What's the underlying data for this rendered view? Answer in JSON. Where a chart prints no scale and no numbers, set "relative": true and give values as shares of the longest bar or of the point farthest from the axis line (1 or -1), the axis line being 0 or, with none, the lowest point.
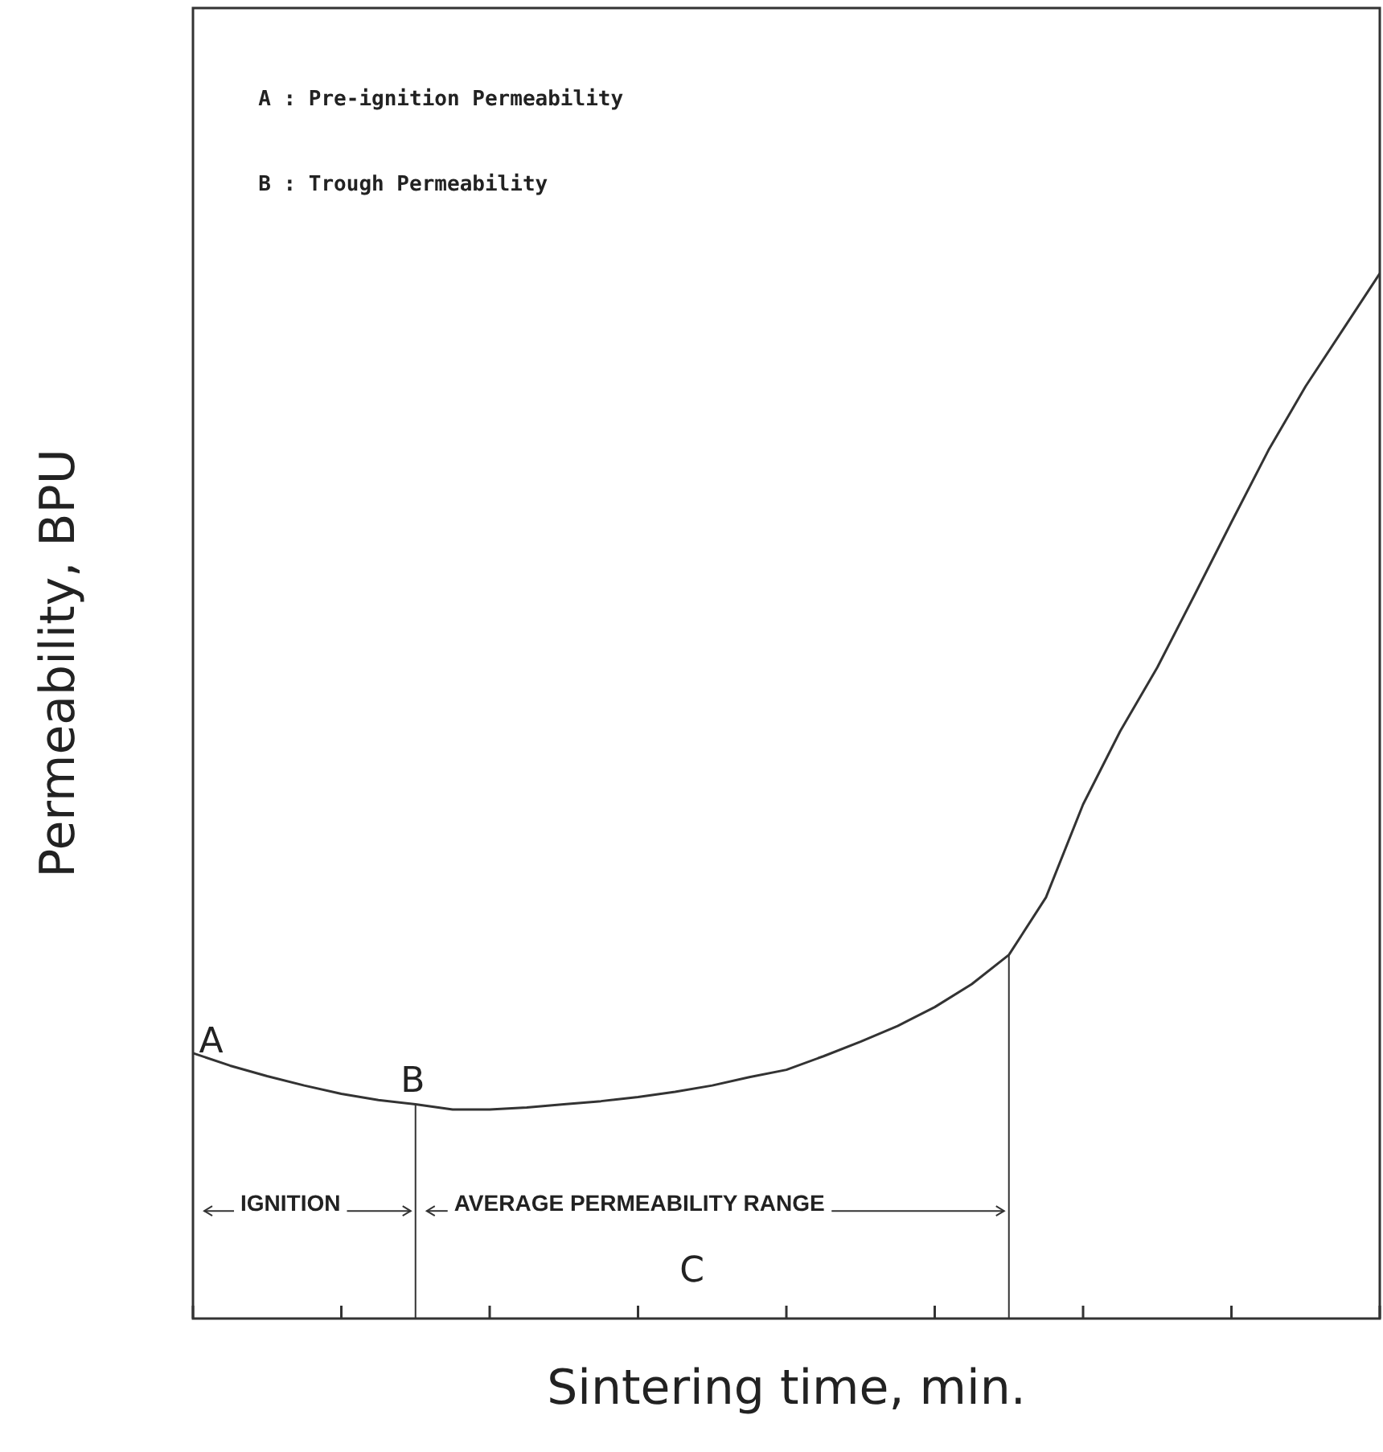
{
  "chart_data": {
    "type": "line",
    "relative": true,
    "xlabel": "Sintering time, min.",
    "ylabel": "Permeability, BPU",
    "color": "#333333",
    "marker": "none",
    "legend": false,
    "categories": [
      null,
      null,
      null,
      null,
      null,
      null,
      null,
      null,
      null,
      null,
      null,
      null,
      null,
      null,
      null,
      null,
      null,
      null,
      null,
      null,
      null,
      null,
      null,
      null,
      null,
      null,
      null,
      null,
      null,
      null,
      null,
      null,
      null
    ],
    "values": [
      0.254,
      0.242,
      0.232,
      0.223,
      0.215,
      0.209,
      0.205,
      0.2,
      0.2,
      0.202,
      0.205,
      0.208,
      0.212,
      0.217,
      0.223,
      0.231,
      0.238,
      0.251,
      0.265,
      0.28,
      0.298,
      0.32,
      0.348,
      0.403,
      0.492,
      0.562,
      0.623,
      0.692,
      0.762,
      0.831,
      0.892,
      0.946,
      1
    ],
    "annotations": [
      "A : Pre-ignition Permeability",
      "B : Trough Permeability",
      "A",
      "B",
      "IGNITION",
      "AVERAGE PERMEABILITY RANGE",
      "C"
    ]
  }
}
